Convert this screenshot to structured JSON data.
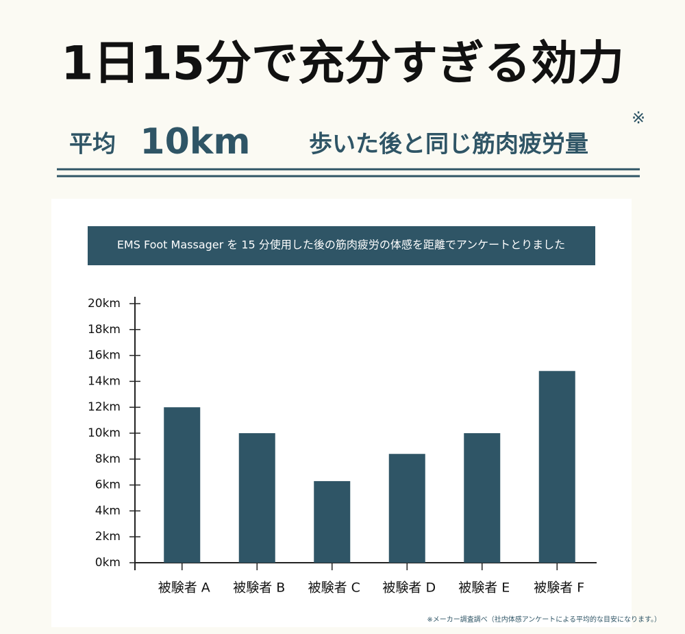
{
  "header": {
    "title": "1日15分で充分すぎる効力",
    "subtitle_prefix": "平均",
    "subtitle_highlight": "10km",
    "subtitle_rest": "歩いた後と同じ筋肉疲労量",
    "subtitle_mark": "※"
  },
  "chart_data": {
    "type": "bar",
    "title": "EMS Foot Massager を 15 分使用した後の筋肉疲労の体感を距離でアンケートとりました",
    "categories": [
      "被験者 A",
      "被験者 B",
      "被験者 C",
      "被験者 D",
      "被験者 E",
      "被験者 F"
    ],
    "values": [
      12,
      10,
      6.3,
      8.4,
      10,
      14.8
    ],
    "color": "#2f5566",
    "ylim": [
      0,
      20
    ],
    "yticks": [
      {
        "value": 0,
        "label": "0km"
      },
      {
        "value": 2,
        "label": "2km"
      },
      {
        "value": 4,
        "label": "4km"
      },
      {
        "value": 6,
        "label": "6km"
      },
      {
        "value": 8,
        "label": "8km"
      },
      {
        "value": 10,
        "label": "10km"
      },
      {
        "value": 12,
        "label": "12km"
      },
      {
        "value": 14,
        "label": "14km"
      },
      {
        "value": 16,
        "label": "16km"
      },
      {
        "value": 18,
        "label": "18km"
      },
      {
        "value": 20,
        "label": "20km"
      }
    ],
    "grid": false
  },
  "footnote": "※メーカー調査調べ（社内体感アンケートによる平均的な目安になります。）"
}
